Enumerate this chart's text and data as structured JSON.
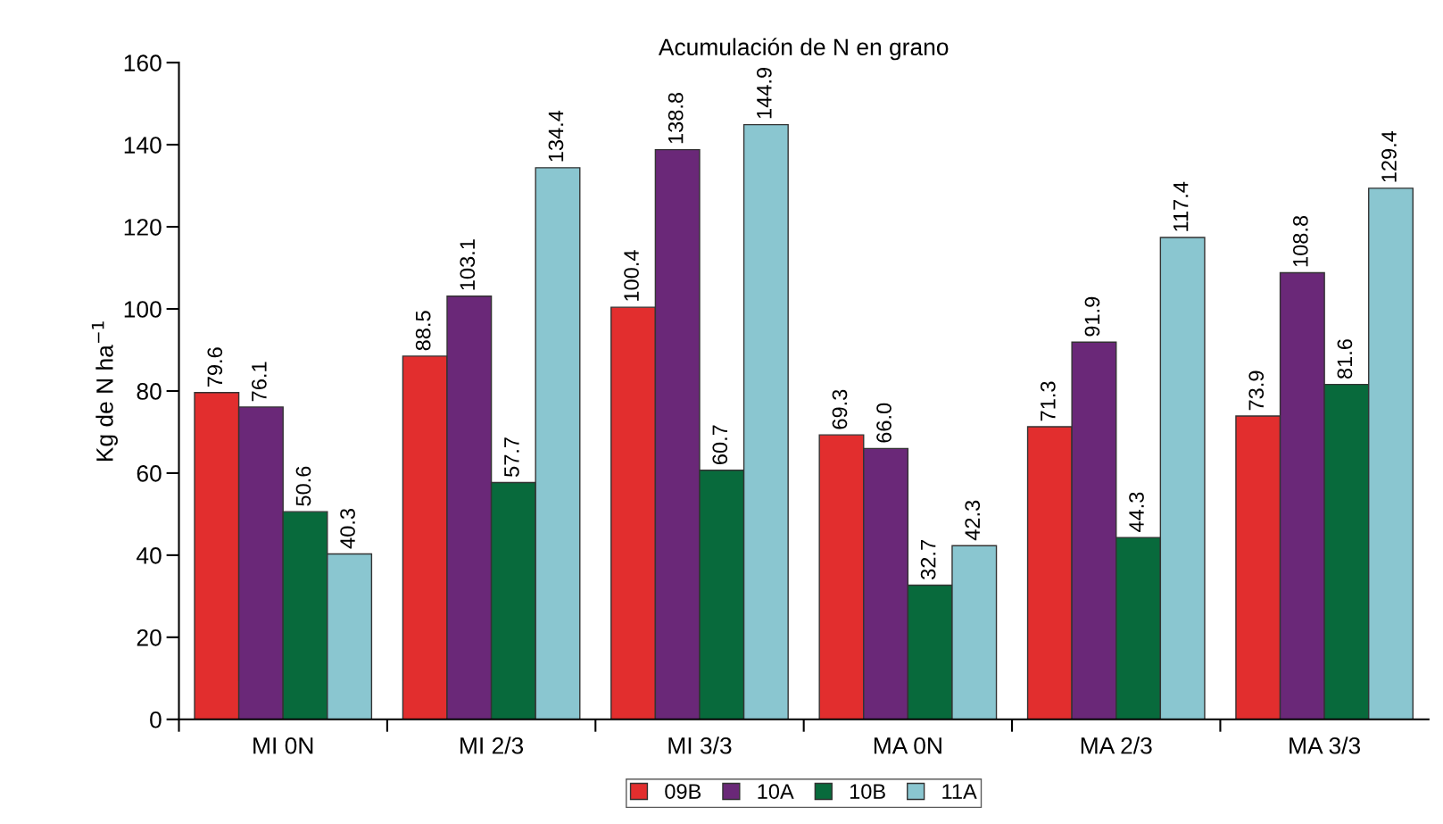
{
  "chart_data": {
    "type": "bar",
    "title": "Acumulación de N en grano",
    "ylabel": "Kg de N ha$^{−1}$",
    "categories": [
      "MI 0N",
      "MI 2/3",
      "MI 3/3",
      "MA 0N",
      "MA 2/3",
      "MA 3/3"
    ],
    "series": [
      {
        "name": "09B",
        "color": "#e22e2e",
        "values": [
          79.6,
          88.5,
          100.4,
          69.3,
          71.3,
          73.9
        ]
      },
      {
        "name": "10A",
        "color": "#6a2878",
        "values": [
          76.1,
          103.1,
          138.8,
          66.0,
          91.9,
          108.8
        ]
      },
      {
        "name": "10B",
        "color": "#086a3c",
        "values": [
          50.6,
          57.7,
          60.7,
          32.7,
          44.3,
          81.6
        ]
      },
      {
        "name": "11A",
        "color": "#8ac6d0",
        "values": [
          40.3,
          134.4,
          144.9,
          42.3,
          117.4,
          129.4
        ]
      }
    ],
    "value_labels": [
      [
        "79.6",
        "88.5",
        "100.4",
        "69.3",
        "71.3",
        "73.9"
      ],
      [
        "76.1",
        "103.1",
        "138.8",
        "66.0",
        "91.9",
        "108.8"
      ],
      [
        "50.6",
        "57.7",
        "60.7",
        "32.7",
        "44.3",
        "81.6"
      ],
      [
        "40.3",
        "134.4",
        "144.9",
        "42.3",
        "117.4",
        "129.4"
      ]
    ],
    "ylim": [
      0,
      160
    ],
    "yticks": [
      0,
      20,
      40,
      60,
      80,
      100,
      120,
      140,
      160
    ],
    "grid": false,
    "legend": "bottom"
  }
}
